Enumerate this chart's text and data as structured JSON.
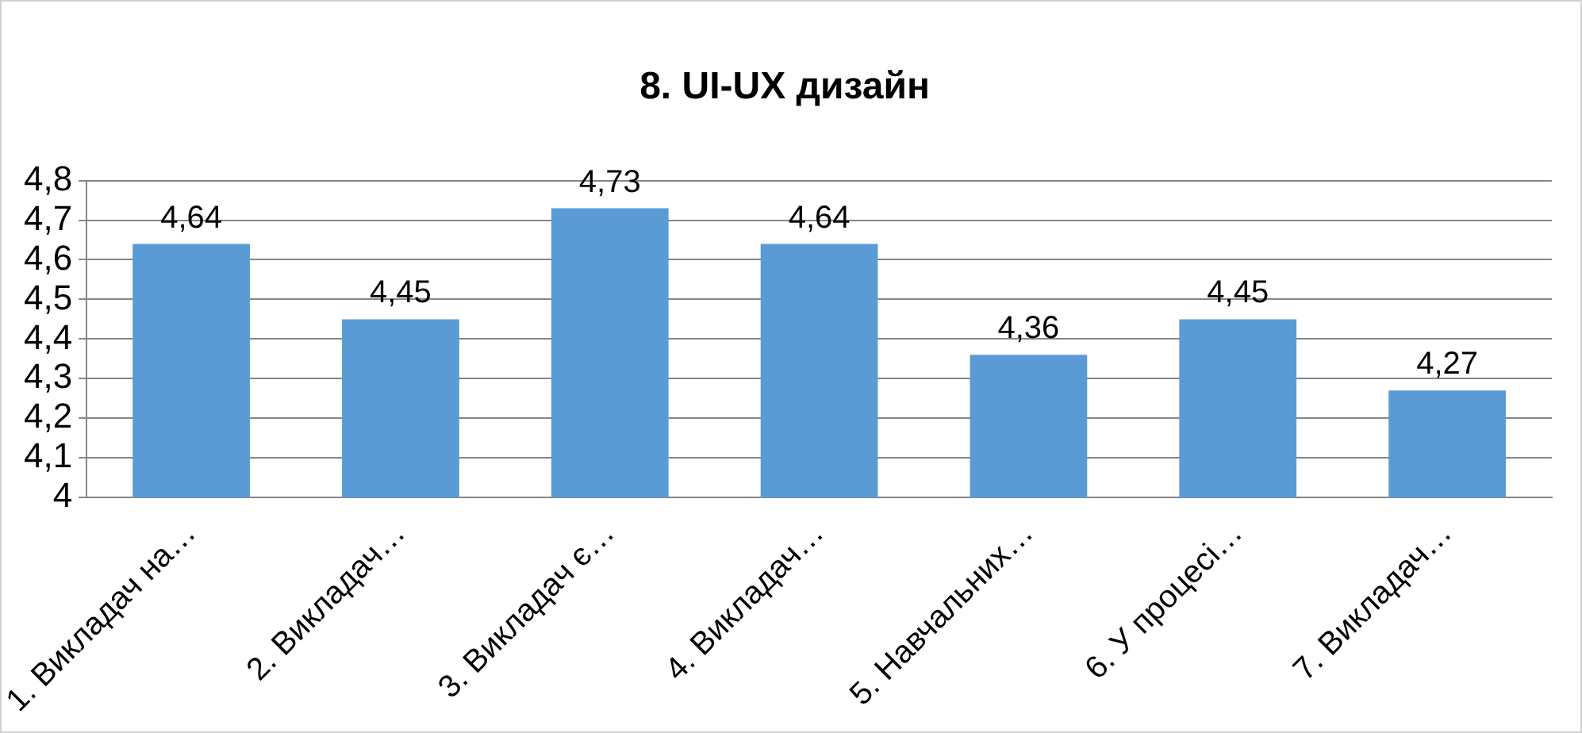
{
  "chart_data": {
    "type": "bar",
    "title": "8. UI-UX дизайн",
    "categories": [
      "1. Викладач на…",
      "2. Викладач…",
      "3. Викладач є…",
      "4. Викладач…",
      "5. Навчальних…",
      "6. У процесі…",
      "7. Викладач…"
    ],
    "series": [
      {
        "color": "#5b9bd5",
        "values": [
          4.64,
          4.45,
          4.73,
          4.64,
          4.36,
          4.45,
          4.27
        ],
        "value_labels": [
          "4,64",
          "4,45",
          "4,73",
          "4,64",
          "4,36",
          "4,45",
          "4,27"
        ]
      }
    ],
    "ylim": [
      4,
      4.8
    ],
    "yticks": [
      {
        "value": 4,
        "label": "4"
      },
      {
        "value": 4.1,
        "label": "4,1"
      },
      {
        "value": 4.2,
        "label": "4,2"
      },
      {
        "value": 4.3,
        "label": "4,3"
      },
      {
        "value": 4.4,
        "label": "4,4"
      },
      {
        "value": 4.5,
        "label": "4,5"
      },
      {
        "value": 4.6,
        "label": "4,6"
      },
      {
        "value": 4.7,
        "label": "4,7"
      },
      {
        "value": 4.8,
        "label": "4,8"
      }
    ],
    "grid": "y",
    "legend": false
  }
}
